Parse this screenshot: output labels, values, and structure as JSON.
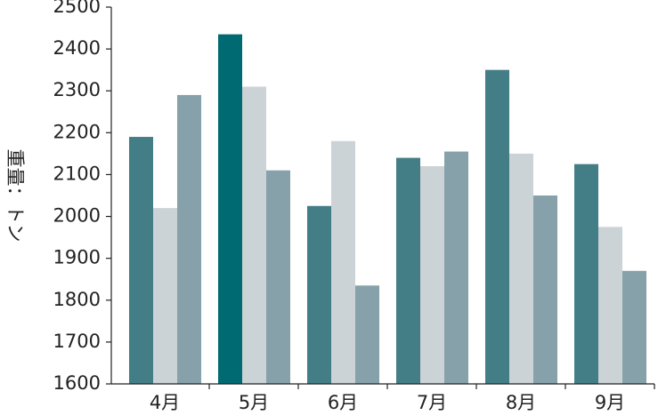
{
  "chart_data": {
    "type": "bar",
    "y_label": "重量：トン",
    "categories": [
      "4月",
      "5月",
      "6月",
      "7月",
      "8月",
      "9月"
    ],
    "series": [
      {
        "color": "#437d86",
        "colors": [
          "#437d86",
          "#006a72",
          "#437d86",
          "#437d86",
          "#437d86",
          "#437d86"
        ],
        "values": [
          2190,
          2435,
          2025,
          2140,
          2350,
          2125
        ]
      },
      {
        "color": "#cbd3d6",
        "values": [
          2020,
          2310,
          2180,
          2120,
          2150,
          1975
        ]
      },
      {
        "color": "#87a1aa",
        "values": [
          2290,
          2110,
          1835,
          2155,
          2050,
          1870
        ]
      }
    ],
    "ylim": [
      1600,
      2500
    ],
    "yticks": [
      1600,
      1700,
      1800,
      1900,
      2000,
      2100,
      2200,
      2300,
      2400,
      2500
    ]
  }
}
